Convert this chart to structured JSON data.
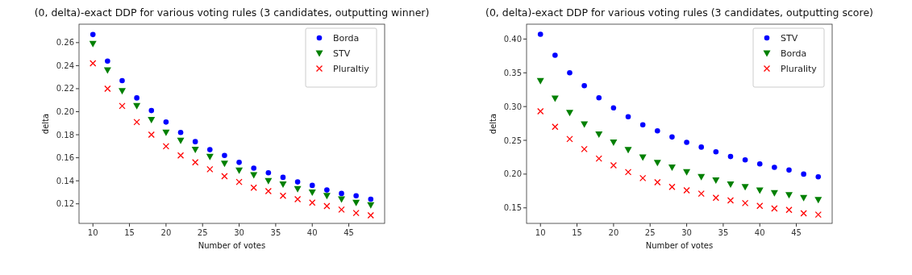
{
  "chart_data": [
    {
      "type": "scatter",
      "title": "(0, delta)-exact DDP for various voting rules (3 candidates, outputting winner)",
      "xlabel": "Number of votes",
      "ylabel": "delta",
      "x": [
        10,
        12,
        14,
        16,
        18,
        20,
        22,
        24,
        26,
        28,
        30,
        32,
        34,
        36,
        38,
        40,
        42,
        44,
        46,
        48
      ],
      "series": [
        {
          "name": "Borda",
          "color": "#0000ff",
          "marker": "circle",
          "values": [
            0.267,
            0.244,
            0.227,
            0.212,
            0.201,
            0.191,
            0.182,
            0.174,
            0.167,
            0.162,
            0.156,
            0.151,
            0.147,
            0.143,
            0.139,
            0.136,
            0.132,
            0.129,
            0.127,
            0.124
          ]
        },
        {
          "name": "STV",
          "color": "#008000",
          "marker": "triangle",
          "values": [
            0.259,
            0.236,
            0.218,
            0.205,
            0.193,
            0.182,
            0.175,
            0.167,
            0.161,
            0.155,
            0.149,
            0.145,
            0.14,
            0.137,
            0.133,
            0.13,
            0.127,
            0.124,
            0.121,
            0.119
          ]
        },
        {
          "name": "Pluraltiy",
          "color": "#ff0000",
          "marker": "cross",
          "values": [
            0.242,
            0.22,
            0.205,
            0.191,
            0.18,
            0.17,
            0.162,
            0.156,
            0.15,
            0.144,
            0.139,
            0.134,
            0.131,
            0.127,
            0.124,
            0.121,
            0.118,
            0.115,
            0.112,
            0.11
          ]
        }
      ],
      "xlim": [
        8.1,
        49.9
      ],
      "xticks": [
        10,
        15,
        20,
        25,
        30,
        35,
        40,
        45
      ],
      "ylim": [
        0.103,
        0.276
      ],
      "yticks": [
        0.12,
        0.14,
        0.16,
        0.18,
        {
          "value": 0.2,
          "label": "0.20"
        },
        0.22,
        0.24,
        0.26
      ],
      "legend": "top right"
    },
    {
      "type": "scatter",
      "title": "(0, delta)-exact DDP for various voting rules (3 candidates, outputting score)",
      "xlabel": "Number of votes",
      "ylabel": "delta",
      "x": [
        10,
        12,
        14,
        16,
        18,
        20,
        22,
        24,
        26,
        28,
        30,
        32,
        34,
        36,
        38,
        40,
        42,
        44,
        46,
        48
      ],
      "series": [
        {
          "name": "STV",
          "color": "#0000ff",
          "marker": "circle",
          "values": [
            0.407,
            0.376,
            0.35,
            0.331,
            0.313,
            0.298,
            0.285,
            0.273,
            0.264,
            0.255,
            0.247,
            0.24,
            0.233,
            0.226,
            0.221,
            0.215,
            0.21,
            0.206,
            0.2,
            0.196
          ]
        },
        {
          "name": "Borda",
          "color": "#008000",
          "marker": "triangle",
          "values": [
            0.338,
            0.312,
            0.291,
            0.274,
            0.259,
            0.247,
            0.236,
            0.225,
            0.217,
            0.21,
            0.203,
            0.196,
            0.191,
            0.185,
            0.181,
            0.176,
            0.172,
            0.169,
            0.165,
            0.162
          ]
        },
        {
          "name": "Plurality",
          "color": "#ff0000",
          "marker": "cross",
          "values": [
            0.293,
            0.27,
            0.252,
            0.237,
            0.223,
            0.213,
            0.203,
            0.194,
            0.188,
            0.181,
            0.176,
            0.171,
            0.165,
            0.161,
            0.157,
            0.153,
            0.149,
            0.147,
            0.142,
            0.14
          ]
        }
      ],
      "xlim": [
        8.1,
        49.9
      ],
      "xticks": [
        10,
        15,
        20,
        25,
        30,
        35,
        40,
        45
      ],
      "ylim": [
        0.127,
        0.422
      ],
      "yticks": [
        0.15,
        {
          "value": 0.2,
          "label": "0.20"
        },
        0.25,
        {
          "value": 0.3,
          "label": "0.30"
        },
        0.35,
        {
          "value": 0.4,
          "label": "0.40"
        }
      ],
      "legend": "top right"
    }
  ]
}
